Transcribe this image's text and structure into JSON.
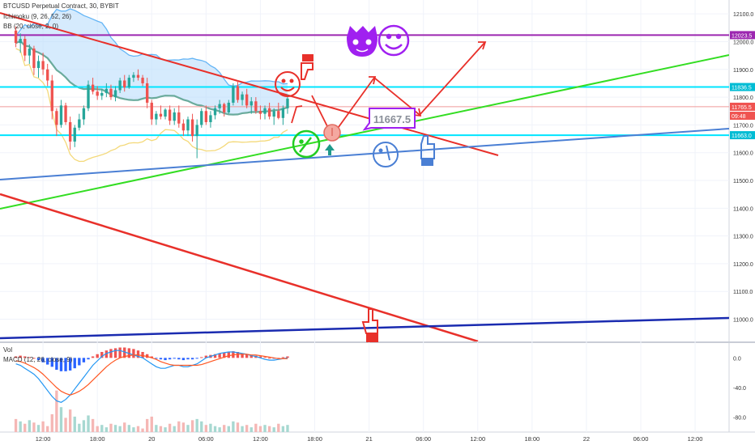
{
  "legend": {
    "symbol_line": "BTCUSD Perpetual Contract, 30, BYBIT",
    "ichimoku": "Ichimoku (9, 26, 52, 26)",
    "bb": "BB (20, close, 2, 0)",
    "vol": "Vol",
    "macd": "MACD (12, 26, close, 9)"
  },
  "chart_data": {
    "type": "candlestick",
    "price_axis": {
      "ticks": [
        "12100.0",
        "12000.0",
        "11900.0",
        "11800.0",
        "11700.0",
        "11600.0",
        "11500.0",
        "11400.0",
        "11300.0",
        "11200.0",
        "11100.0",
        "11000.0"
      ],
      "tick_values": [
        12100,
        12000,
        11900,
        11800,
        11700,
        11600,
        11500,
        11400,
        11300,
        11200,
        11100,
        11000
      ],
      "ylim": [
        10920,
        12150
      ]
    },
    "price_labels": [
      {
        "text": "12023.5",
        "value": 12023.5,
        "color": "#9c27b0"
      },
      {
        "text": "11836.5",
        "value": 11836.5,
        "color": "#00bcd4"
      },
      {
        "text": "11765.5",
        "value": 11765.5,
        "color": "#ef5350"
      },
      {
        "text": "09:48",
        "value": 11733,
        "color": "#ef5350"
      },
      {
        "text": "11663.0",
        "value": 11663,
        "color": "#00bcd4"
      }
    ],
    "horizontal_levels": [
      {
        "value": 12023.5,
        "color": "#9c27b0"
      },
      {
        "value": 11836.5,
        "color": "#00e5ff"
      },
      {
        "value": 11765.5,
        "color": "#ef9a9a"
      },
      {
        "value": 11663,
        "color": "#00e5ff"
      }
    ],
    "time_axis": {
      "labels": [
        "12:00",
        "18:00",
        "20",
        "06:00",
        "12:00",
        "18:00",
        "21",
        "06:00",
        "12:00",
        "18:00",
        "22",
        "06:00",
        "12:00"
      ],
      "bar_index": [
        6,
        18,
        30,
        42,
        54,
        66,
        78,
        90,
        102,
        114,
        126,
        138,
        150
      ]
    },
    "x_range": [
      -3.5,
      157.5
    ],
    "candles": [
      [
        12040,
        12055,
        11980,
        11995
      ],
      [
        11995,
        12030,
        11960,
        12010
      ],
      [
        12010,
        12020,
        11930,
        11950
      ],
      [
        11950,
        11990,
        11920,
        11975
      ],
      [
        11975,
        11985,
        11880,
        11905
      ],
      [
        11905,
        11950,
        11870,
        11930
      ],
      [
        11930,
        11960,
        11880,
        11900
      ],
      [
        11900,
        11920,
        11840,
        11860
      ],
      [
        11860,
        11880,
        11720,
        11750
      ],
      [
        11750,
        11760,
        11660,
        11700
      ],
      [
        11700,
        11790,
        11690,
        11770
      ],
      [
        11770,
        11780,
        11700,
        11710
      ],
      [
        11710,
        11730,
        11610,
        11640
      ],
      [
        11640,
        11700,
        11620,
        11690
      ],
      [
        11690,
        11740,
        11680,
        11720
      ],
      [
        11720,
        11770,
        11700,
        11760
      ],
      [
        11760,
        11860,
        11750,
        11845
      ],
      [
        11845,
        11870,
        11810,
        11820
      ],
      [
        11820,
        11840,
        11790,
        11805
      ],
      [
        11805,
        11830,
        11790,
        11815
      ],
      [
        11815,
        11850,
        11800,
        11830
      ],
      [
        11830,
        11845,
        11790,
        11800
      ],
      [
        11800,
        11840,
        11785,
        11825
      ],
      [
        11825,
        11870,
        11815,
        11860
      ],
      [
        11860,
        11880,
        11820,
        11835
      ],
      [
        11835,
        11880,
        11830,
        11870
      ],
      [
        11870,
        11890,
        11855,
        11880
      ],
      [
        11880,
        11900,
        11860,
        11870
      ],
      [
        11870,
        11880,
        11840,
        11850
      ],
      [
        11850,
        11870,
        11760,
        11780
      ],
      [
        11780,
        11790,
        11700,
        11720
      ],
      [
        11720,
        11750,
        11700,
        11740
      ],
      [
        11740,
        11770,
        11720,
        11730
      ],
      [
        11730,
        11760,
        11720,
        11755
      ],
      [
        11755,
        11770,
        11700,
        11715
      ],
      [
        11715,
        11760,
        11700,
        11745
      ],
      [
        11745,
        11770,
        11690,
        11705
      ],
      [
        11705,
        11720,
        11660,
        11680
      ],
      [
        11680,
        11730,
        11660,
        11720
      ],
      [
        11720,
        11740,
        11640,
        11660
      ],
      [
        11660,
        11720,
        11580,
        11700
      ],
      [
        11700,
        11760,
        11690,
        11750
      ],
      [
        11750,
        11770,
        11700,
        11710
      ],
      [
        11710,
        11750,
        11690,
        11735
      ],
      [
        11735,
        11770,
        11720,
        11760
      ],
      [
        11760,
        11790,
        11740,
        11775
      ],
      [
        11775,
        11780,
        11730,
        11745
      ],
      [
        11745,
        11790,
        11740,
        11780
      ],
      [
        11780,
        11850,
        11770,
        11840
      ],
      [
        11840,
        11860,
        11780,
        11790
      ],
      [
        11790,
        11820,
        11770,
        11810
      ],
      [
        11810,
        11830,
        11760,
        11770
      ],
      [
        11770,
        11800,
        11740,
        11785
      ],
      [
        11785,
        11800,
        11740,
        11750
      ],
      [
        11750,
        11770,
        11720,
        11740
      ],
      [
        11740,
        11770,
        11720,
        11760
      ],
      [
        11760,
        11780,
        11720,
        11730
      ],
      [
        11730,
        11760,
        11700,
        11750
      ],
      [
        11750,
        11780,
        11720,
        11725
      ],
      [
        11725,
        11770,
        11700,
        11760
      ],
      [
        11760,
        11810,
        11740,
        11795
      ]
    ],
    "vol_axis": {
      "ylim": [
        0,
        150
      ]
    },
    "volumes": [
      22,
      18,
      14,
      20,
      16,
      12,
      18,
      10,
      30,
      70,
      42,
      24,
      38,
      26,
      14,
      20,
      28,
      22,
      10,
      12,
      8,
      14,
      12,
      10,
      16,
      12,
      8,
      10,
      6,
      22,
      26,
      12,
      10,
      8,
      14,
      10,
      18,
      16,
      12,
      20,
      22,
      18,
      12,
      14,
      10,
      8,
      12,
      10,
      18,
      16,
      10,
      12,
      8,
      14,
      10,
      12,
      10,
      8,
      14,
      10,
      12
    ],
    "macd_axis": {
      "ticks": [
        "0.0",
        "-40.0",
        "-80.0"
      ],
      "tick_values": [
        0,
        -40,
        -80
      ],
      "ylim": [
        -100,
        20
      ]
    },
    "macd_hist": [
      2,
      3,
      2,
      1,
      0,
      -3,
      -6,
      -9,
      -12,
      -16,
      -18,
      -18,
      -17,
      -14,
      -10,
      -6,
      -2,
      2,
      5,
      8,
      10,
      12,
      13,
      14,
      14,
      13,
      12,
      10,
      8,
      5,
      2,
      -1,
      -2,
      -3,
      -2,
      -1,
      -2,
      -3,
      -2,
      -2,
      -1,
      1,
      3,
      4,
      5,
      6,
      7,
      8,
      9,
      8,
      6,
      5,
      4,
      3,
      2,
      1,
      0,
      -1,
      0,
      1,
      2
    ],
    "macd_line": [
      -8,
      -10,
      -14,
      -18,
      -22,
      -28,
      -36,
      -44,
      -52,
      -58,
      -60,
      -56,
      -50,
      -42,
      -34,
      -26,
      -18,
      -10,
      -4,
      2,
      6,
      8,
      10,
      10,
      8,
      6,
      4,
      2,
      0,
      -4,
      -8,
      -12,
      -14,
      -14,
      -12,
      -10,
      -10,
      -12,
      -12,
      -10,
      -8,
      -4,
      0,
      2,
      4,
      6,
      7,
      8,
      8,
      7,
      6,
      5,
      3,
      2,
      0,
      -2,
      -3,
      -3,
      -2,
      -1,
      0
    ],
    "signal_line": [
      -4,
      -5,
      -7,
      -10,
      -13,
      -17,
      -22,
      -28,
      -34,
      -40,
      -45,
      -48,
      -50,
      -48,
      -45,
      -41,
      -36,
      -30,
      -24,
      -18,
      -12,
      -7,
      -3,
      0,
      2,
      3,
      4,
      4,
      3,
      2,
      0,
      -2,
      -5,
      -7,
      -9,
      -10,
      -10,
      -10,
      -10,
      -10,
      -10,
      -9,
      -7,
      -5,
      -3,
      -1,
      1,
      3,
      4,
      5,
      5,
      5,
      4,
      4,
      3,
      2,
      1,
      0,
      -1,
      -1,
      -1
    ]
  },
  "annotations": {
    "price_box_text": "11667.5",
    "price_box_value": 11667.5,
    "emoji_note": "Decorative smiley, devil, thumbs, hand and arrow drawings on chart"
  },
  "colors": {
    "up": "#26a69a",
    "down": "#ef5350",
    "purple": "#a020f0",
    "cyan": "#00e5ff",
    "green_line": "#33dd22",
    "blue_line": "#4a7fd4",
    "navy_line": "#1a2bb0",
    "red_line": "#e8302a",
    "macd": "#2196f3",
    "signal": "#ff5722"
  }
}
